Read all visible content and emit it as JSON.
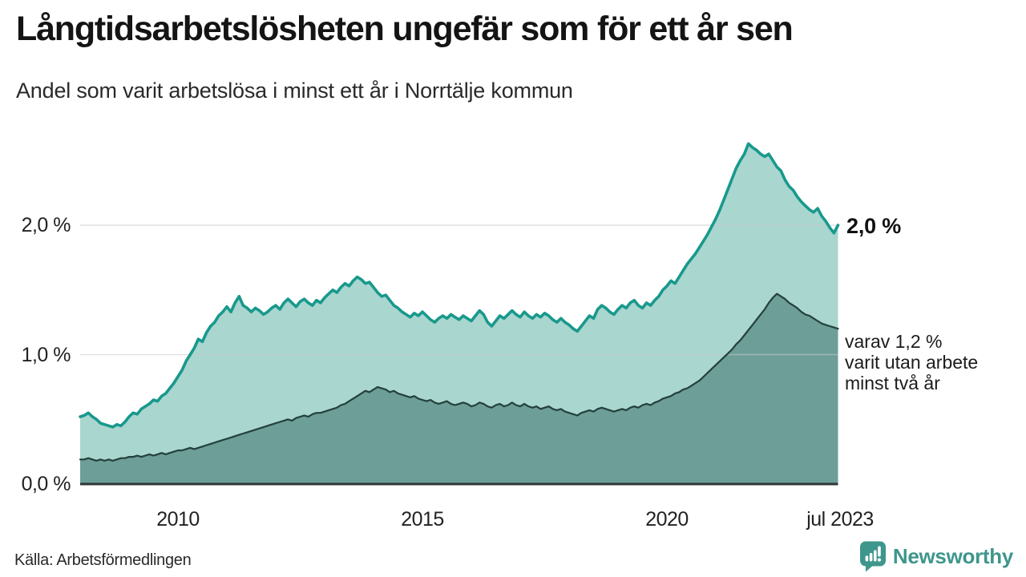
{
  "chart_data": {
    "type": "area",
    "title": "Långtidsarbetslösheten ungefär som för ett år sen",
    "subtitle": "Andel som varit arbetslösa i minst ett år i Norrtälje kommun",
    "x_start": 2008.0,
    "points_per_year": 12,
    "x_range": [
      2008.0,
      2023.5
    ],
    "ylim": [
      0,
      2.72
    ],
    "grid": "horizontal",
    "y_axis": {
      "ticks": [
        {
          "v": 0,
          "label": "0,0 %"
        },
        {
          "v": 1,
          "label": "1,0 %"
        },
        {
          "v": 2,
          "label": "2,0 %"
        }
      ]
    },
    "x_axis": {
      "ticks": [
        {
          "x": 2010.0,
          "label": "2010"
        },
        {
          "x": 2015.0,
          "label": "2015"
        },
        {
          "x": 2020.0,
          "label": "2020"
        },
        {
          "x": 2023.5,
          "label": "jul 2023"
        }
      ]
    },
    "series": [
      {
        "name": "Arbetslösa minst ett år",
        "line_color": "#18998c",
        "fill_color": "#a9d6cf",
        "line_width": 3.6,
        "end_value_label": "2,0 %",
        "values": [
          0.52,
          0.53,
          0.55,
          0.52,
          0.5,
          0.47,
          0.46,
          0.45,
          0.44,
          0.46,
          0.45,
          0.48,
          0.52,
          0.55,
          0.54,
          0.58,
          0.6,
          0.62,
          0.65,
          0.64,
          0.68,
          0.7,
          0.74,
          0.78,
          0.83,
          0.88,
          0.95,
          1.0,
          1.05,
          1.12,
          1.1,
          1.17,
          1.22,
          1.25,
          1.3,
          1.33,
          1.37,
          1.33,
          1.4,
          1.45,
          1.38,
          1.36,
          1.33,
          1.36,
          1.34,
          1.31,
          1.33,
          1.36,
          1.38,
          1.35,
          1.4,
          1.43,
          1.4,
          1.37,
          1.41,
          1.43,
          1.4,
          1.38,
          1.42,
          1.4,
          1.44,
          1.47,
          1.5,
          1.48,
          1.52,
          1.55,
          1.53,
          1.57,
          1.6,
          1.58,
          1.55,
          1.56,
          1.52,
          1.48,
          1.45,
          1.46,
          1.42,
          1.38,
          1.36,
          1.33,
          1.31,
          1.29,
          1.32,
          1.3,
          1.33,
          1.3,
          1.27,
          1.25,
          1.28,
          1.3,
          1.28,
          1.31,
          1.29,
          1.27,
          1.3,
          1.28,
          1.26,
          1.3,
          1.34,
          1.31,
          1.25,
          1.22,
          1.26,
          1.3,
          1.28,
          1.31,
          1.34,
          1.31,
          1.29,
          1.33,
          1.3,
          1.28,
          1.31,
          1.29,
          1.32,
          1.3,
          1.27,
          1.25,
          1.28,
          1.25,
          1.23,
          1.2,
          1.18,
          1.22,
          1.26,
          1.3,
          1.28,
          1.35,
          1.38,
          1.36,
          1.33,
          1.31,
          1.35,
          1.38,
          1.36,
          1.4,
          1.42,
          1.38,
          1.36,
          1.4,
          1.38,
          1.42,
          1.45,
          1.5,
          1.53,
          1.57,
          1.55,
          1.6,
          1.65,
          1.7,
          1.74,
          1.78,
          1.83,
          1.88,
          1.93,
          1.99,
          2.05,
          2.12,
          2.2,
          2.28,
          2.36,
          2.44,
          2.5,
          2.55,
          2.63,
          2.6,
          2.58,
          2.55,
          2.53,
          2.55,
          2.5,
          2.45,
          2.42,
          2.35,
          2.3,
          2.27,
          2.22,
          2.18,
          2.15,
          2.12,
          2.1,
          2.13,
          2.07,
          2.03,
          1.98,
          1.94,
          2.0
        ]
      },
      {
        "name": "varav arbetslösa minst två år",
        "line_color": "#24403c",
        "fill_color": "#6d9e98",
        "line_width": 2.2,
        "end_value_label": "1,2 %",
        "values": [
          0.19,
          0.19,
          0.2,
          0.19,
          0.18,
          0.19,
          0.18,
          0.19,
          0.18,
          0.19,
          0.2,
          0.2,
          0.21,
          0.21,
          0.22,
          0.21,
          0.22,
          0.23,
          0.22,
          0.23,
          0.24,
          0.23,
          0.24,
          0.25,
          0.26,
          0.26,
          0.27,
          0.28,
          0.27,
          0.28,
          0.29,
          0.3,
          0.31,
          0.32,
          0.33,
          0.34,
          0.35,
          0.36,
          0.37,
          0.38,
          0.39,
          0.4,
          0.41,
          0.42,
          0.43,
          0.44,
          0.45,
          0.46,
          0.47,
          0.48,
          0.49,
          0.5,
          0.49,
          0.51,
          0.52,
          0.53,
          0.52,
          0.54,
          0.55,
          0.55,
          0.56,
          0.57,
          0.58,
          0.59,
          0.61,
          0.62,
          0.64,
          0.66,
          0.68,
          0.7,
          0.72,
          0.71,
          0.73,
          0.75,
          0.74,
          0.73,
          0.71,
          0.72,
          0.7,
          0.69,
          0.68,
          0.67,
          0.68,
          0.66,
          0.65,
          0.64,
          0.65,
          0.63,
          0.62,
          0.63,
          0.64,
          0.62,
          0.61,
          0.62,
          0.63,
          0.62,
          0.6,
          0.61,
          0.63,
          0.62,
          0.6,
          0.59,
          0.61,
          0.62,
          0.6,
          0.61,
          0.63,
          0.61,
          0.6,
          0.62,
          0.6,
          0.59,
          0.6,
          0.58,
          0.59,
          0.6,
          0.58,
          0.57,
          0.58,
          0.56,
          0.55,
          0.54,
          0.53,
          0.55,
          0.56,
          0.57,
          0.56,
          0.58,
          0.59,
          0.58,
          0.57,
          0.56,
          0.57,
          0.58,
          0.57,
          0.59,
          0.6,
          0.59,
          0.61,
          0.62,
          0.61,
          0.63,
          0.64,
          0.66,
          0.67,
          0.68,
          0.7,
          0.71,
          0.73,
          0.74,
          0.76,
          0.78,
          0.8,
          0.83,
          0.86,
          0.89,
          0.92,
          0.95,
          0.98,
          1.01,
          1.04,
          1.08,
          1.11,
          1.15,
          1.19,
          1.23,
          1.27,
          1.31,
          1.35,
          1.4,
          1.44,
          1.47,
          1.45,
          1.43,
          1.4,
          1.38,
          1.36,
          1.33,
          1.31,
          1.3,
          1.28,
          1.26,
          1.24,
          1.23,
          1.22,
          1.21,
          1.2
        ]
      }
    ],
    "annotations": {
      "series1_end": "2,0 %",
      "series2_line1": "varav 1,2 %",
      "series2_line2": "varit utan arbete",
      "series2_line3": "minst två år"
    },
    "colors": {
      "gridline": "#c8c8c8",
      "baseline": "#2d3734",
      "brand_teal": "#3e968c"
    }
  },
  "footer": {
    "source": "Källa: Arbetsförmedlingen",
    "brand": "Newsworthy"
  }
}
